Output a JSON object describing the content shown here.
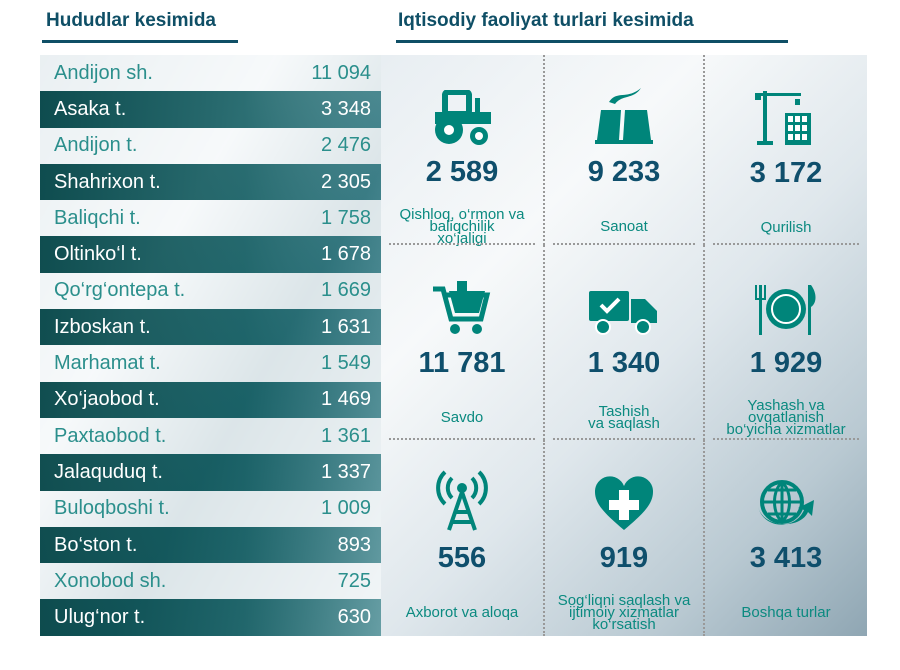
{
  "left_title": "Hududlar kesimida",
  "right_title": "Iqtisodiy faoliyat turlari kesimida",
  "regions": [
    {
      "name": "Andijon sh.",
      "value": "11 094"
    },
    {
      "name": "Asaka t.",
      "value": "3 348"
    },
    {
      "name": "Andijon t.",
      "value": "2 476"
    },
    {
      "name": "Shahrixon t.",
      "value": "2 305"
    },
    {
      "name": "Baliqchi t.",
      "value": "1 758"
    },
    {
      "name": "Oltinko‘l t.",
      "value": "1 678"
    },
    {
      "name": "Qo‘rg‘ontepa t.",
      "value": "1 669"
    },
    {
      "name": "Izboskan t.",
      "value": "1 631"
    },
    {
      "name": "Marhamat t.",
      "value": "1 549"
    },
    {
      "name": "Xo‘jaobod t.",
      "value": "1 469"
    },
    {
      "name": "Paxtaobod t.",
      "value": "1 361"
    },
    {
      "name": "Jalaquduq t.",
      "value": "1 337"
    },
    {
      "name": "Buloqboshi t.",
      "value": "1 009"
    },
    {
      "name": "Bo‘ston t.",
      "value": "893"
    },
    {
      "name": "Xonobod sh.",
      "value": "725"
    },
    {
      "name": "Ulug‘nor t.",
      "value": "630"
    }
  ],
  "sectors": [
    {
      "icon": "tractor-icon",
      "value": "2 589",
      "label": [
        "Qishloq, o‘rmon va",
        "baliqchilik",
        "xo‘jaligi"
      ]
    },
    {
      "icon": "factory-icon",
      "value": "9 233",
      "label": [
        "Sanoat"
      ]
    },
    {
      "icon": "crane-icon",
      "value": "3 172",
      "label": [
        "Qurilish"
      ]
    },
    {
      "icon": "shopping-cart-icon",
      "value": "11 781",
      "label": [
        "Savdo"
      ]
    },
    {
      "icon": "truck-icon",
      "value": "1 340",
      "label": [
        "Tashish",
        "va saqlash"
      ]
    },
    {
      "icon": "plate-cutlery-icon",
      "value": "1 929",
      "label": [
        "Yashash va",
        "ovqatlanish",
        "bo‘yicha xizmatlar"
      ]
    },
    {
      "icon": "antenna-icon",
      "value": "556",
      "label": [
        "Axborot va aloqa"
      ]
    },
    {
      "icon": "heart-cross-icon",
      "value": "919",
      "label": [
        "Sog‘liqni saqlash va",
        "ijtimoiy xizmatlar",
        "ko‘rsatish"
      ]
    },
    {
      "icon": "globe-arrow-icon",
      "value": "3 413",
      "label": [
        "Boshqa turlar"
      ]
    }
  ],
  "colors": {
    "teal": "#0b8a80",
    "dark": "#0f4f6c"
  }
}
